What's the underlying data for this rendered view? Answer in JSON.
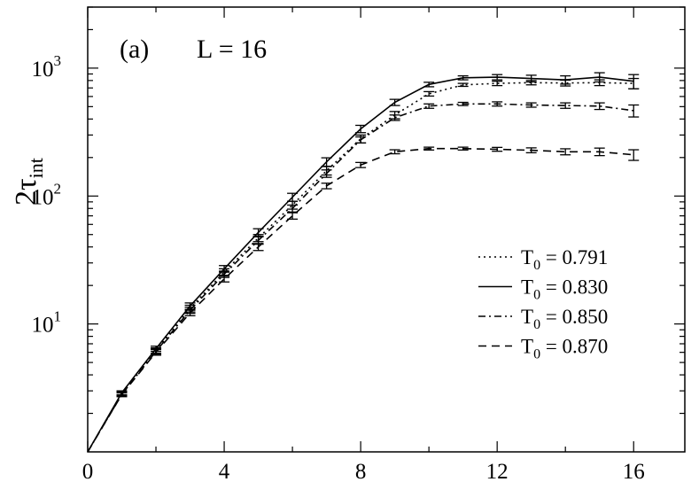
{
  "chart_data": {
    "type": "line",
    "panel_label": "(a)",
    "annotation": "L = 16",
    "ylabel_main": "2τ",
    "ylabel_sub": "int",
    "xlabel": "",
    "xlim": [
      0,
      17.5
    ],
    "ylim": [
      1,
      3000
    ],
    "yscale": "log",
    "x_ticks": [
      0,
      4,
      8,
      12,
      16
    ],
    "x_tick_labels": [
      "0",
      "4",
      "8",
      "12",
      "16"
    ],
    "y_ticks": [
      {
        "value": 10,
        "base": "10",
        "exp": "1"
      },
      {
        "value": 100,
        "base": "10",
        "exp": "2"
      },
      {
        "value": 1000,
        "base": "10",
        "exp": "3"
      }
    ],
    "x": [
      0,
      1,
      2,
      3,
      4,
      5,
      6,
      7,
      8,
      9,
      10,
      11,
      12,
      13,
      14,
      15,
      16
    ],
    "series": [
      {
        "name_main": "T",
        "name_sub": "0",
        "name_rest": " = 0.791",
        "dash": "2,4",
        "values": [
          1,
          2.85,
          6.2,
          13.2,
          25.5,
          47,
          85,
          158,
          280,
          430,
          630,
          740,
          760,
          770,
          765,
          770,
          760
        ],
        "errors": [
          0,
          0.1,
          0.3,
          0.8,
          1.5,
          3,
          6,
          12,
          20,
          28,
          25,
          20,
          30,
          30,
          40,
          40,
          70
        ]
      },
      {
        "name_main": "T",
        "name_sub": "0",
        "name_rest": " = 0.830",
        "dash": "",
        "values": [
          1,
          2.9,
          6.4,
          13.8,
          27,
          52,
          98,
          185,
          335,
          540,
          745,
          840,
          850,
          830,
          810,
          850,
          790
        ],
        "errors": [
          0,
          0.1,
          0.3,
          0.8,
          1.6,
          3.5,
          7,
          14,
          22,
          30,
          30,
          30,
          40,
          50,
          60,
          70,
          100
        ]
      },
      {
        "name_main": "T",
        "name_sub": "0",
        "name_rest": " = 0.850",
        "dash": "8,4,2,4",
        "values": [
          1,
          2.82,
          6.1,
          12.8,
          24.5,
          45,
          80,
          150,
          275,
          410,
          505,
          525,
          525,
          515,
          510,
          505,
          465
        ],
        "errors": [
          0,
          0.1,
          0.3,
          0.7,
          1.4,
          3,
          5,
          10,
          15,
          20,
          20,
          15,
          20,
          20,
          25,
          30,
          50
        ]
      },
      {
        "name_main": "T",
        "name_sub": "0",
        "name_rest": " = 0.870",
        "dash": "9,6",
        "values": [
          1,
          2.8,
          6.0,
          12.2,
          22.5,
          40,
          70,
          120,
          175,
          222,
          235,
          235,
          232,
          228,
          222,
          222,
          210
        ],
        "errors": [
          0,
          0.1,
          0.3,
          0.6,
          1.2,
          2.5,
          4,
          6,
          8,
          8,
          6,
          6,
          8,
          10,
          12,
          15,
          20
        ]
      }
    ],
    "legend_position": "lower-right",
    "grid": false
  }
}
